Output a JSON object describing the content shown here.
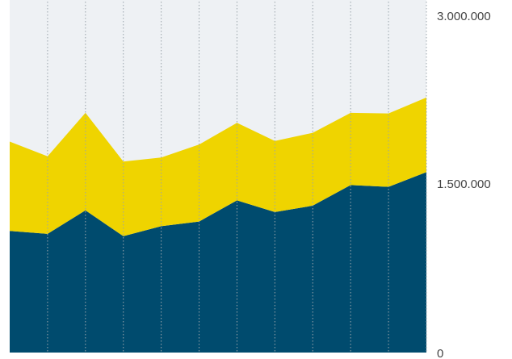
{
  "chart_data": {
    "type": "area",
    "stacked": true,
    "x": [
      1,
      2,
      3,
      4,
      5,
      6,
      7,
      8,
      9,
      10,
      11,
      12
    ],
    "series": [
      {
        "values": [
          1035000,
          1010000,
          1210000,
          990000,
          1075000,
          1115000,
          1295000,
          1195000,
          1250000,
          1425000,
          1410000,
          1535000
        ]
      },
      {
        "values": [
          760000,
          660000,
          830000,
          635000,
          585000,
          655000,
          660000,
          605000,
          620000,
          615000,
          625000,
          635000
        ]
      }
    ],
    "ylim": [
      0,
      3000000
    ],
    "yticks": [
      0,
      1500000,
      3000000
    ],
    "ytick_labels": [
      "0",
      "1.500.000",
      "3.000.000"
    ],
    "grid": "vertical-dotted",
    "colors": {
      "background": "#eef1f4",
      "series": [
        "#004b6e",
        "#efd400"
      ],
      "grid": "#9aa4ab",
      "text": "#444444"
    }
  }
}
